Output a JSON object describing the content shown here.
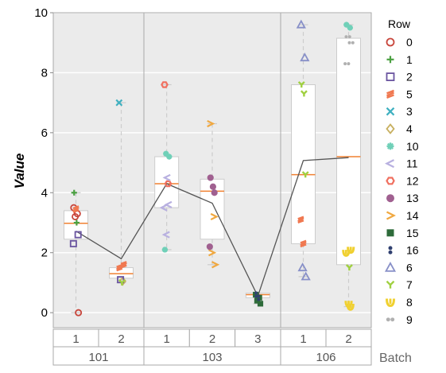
{
  "chart_data": {
    "type": "box",
    "xlabel": "Batch",
    "ylabel": "Value",
    "ylim": [
      -0.5,
      10
    ],
    "yticks": [
      0,
      2,
      4,
      6,
      8,
      10
    ],
    "grid": true,
    "legend_position": "right",
    "legend_title": "Row",
    "groups": [
      {
        "batch": "101",
        "boxes": [
          {
            "label": "1",
            "min": 0.0,
            "q1": 2.45,
            "median": 2.98,
            "q3": 3.4,
            "max": 4.0,
            "mean": 2.72,
            "points": [
              {
                "row": "0",
                "values": [
                  3.5,
                  3.3,
                  3.2,
                  0.0
                ]
              },
              {
                "row": "1",
                "values": [
                  4.0,
                  3.0
                ]
              },
              {
                "row": "2",
                "values": [
                  2.6,
                  2.3
                ]
              },
              {
                "row": "5",
                "values": [
                  3.45
                ]
              }
            ]
          },
          {
            "label": "2",
            "min": 1.0,
            "q1": 1.15,
            "median": 1.3,
            "q3": 1.5,
            "max": 7.0,
            "mean": 1.8,
            "points": [
              {
                "row": "3",
                "values": [
                  7.0
                ]
              },
              {
                "row": "4",
                "values": [
                  1.05
                ]
              },
              {
                "row": "2",
                "values": [
                  1.1
                ]
              },
              {
                "row": "5",
                "values": [
                  1.6,
                  1.5
                ]
              },
              {
                "row": "7",
                "values": [
                  1.0
                ]
              }
            ]
          }
        ]
      },
      {
        "batch": "103",
        "boxes": [
          {
            "label": "1",
            "min": 2.1,
            "q1": 3.5,
            "median": 4.3,
            "q3": 5.2,
            "max": 7.6,
            "mean": 4.3,
            "points": [
              {
                "row": "12",
                "values": [
                  7.6,
                  4.3
                ]
              },
              {
                "row": "10",
                "values": [
                  5.3,
                  5.2,
                  2.1
                ]
              },
              {
                "row": "11",
                "values": [
                  4.5,
                  3.6,
                  3.5,
                  2.6
                ]
              }
            ]
          },
          {
            "label": "2",
            "min": 1.6,
            "q1": 2.45,
            "median": 4.05,
            "q3": 4.45,
            "max": 6.3,
            "mean": 3.65,
            "points": [
              {
                "row": "14",
                "values": [
                  6.3,
                  3.2,
                  2.0,
                  1.6
                ]
              },
              {
                "row": "13",
                "values": [
                  4.5,
                  4.2,
                  4.0,
                  2.2
                ]
              }
            ]
          },
          {
            "label": "3",
            "min": 0.3,
            "q1": 0.5,
            "median": 0.6,
            "q3": 0.65,
            "max": 0.65,
            "mean": 0.55,
            "points": [
              {
                "row": "15",
                "values": [
                  0.6,
                  0.5,
                  0.4,
                  0.3
                ]
              },
              {
                "row": "16",
                "values": [
                  0.6,
                  0.5
                ]
              }
            ]
          }
        ]
      },
      {
        "batch": "106",
        "boxes": [
          {
            "label": "1",
            "min": 1.2,
            "q1": 2.3,
            "median": 4.6,
            "q3": 7.6,
            "max": 9.6,
            "mean": 5.07,
            "points": [
              {
                "row": "6",
                "values": [
                  9.6,
                  8.5,
                  1.5,
                  1.2
                ]
              },
              {
                "row": "7",
                "values": [
                  7.6,
                  7.3,
                  4.6
                ]
              },
              {
                "row": "5",
                "values": [
                  3.1,
                  2.3
                ]
              }
            ]
          },
          {
            "label": "2",
            "min": 0.2,
            "q1": 1.6,
            "median": 5.2,
            "q3": 9.15,
            "max": 9.6,
            "mean": 5.17,
            "points": [
              {
                "row": "10",
                "values": [
                  9.6,
                  9.5
                ]
              },
              {
                "row": "9",
                "values": [
                  9.2,
                  9.0,
                  8.3
                ]
              },
              {
                "row": "7",
                "values": [
                  1.5
                ]
              },
              {
                "row": "8",
                "values": [
                  2.1,
                  2.0,
                  0.3,
                  0.2
                ]
              }
            ]
          }
        ]
      }
    ],
    "legend": [
      {
        "label": "0",
        "color": "#c8463c",
        "shape": "circle-open"
      },
      {
        "label": "1",
        "color": "#4aa041",
        "shape": "plus"
      },
      {
        "label": "2",
        "color": "#6a55a0",
        "shape": "square-open"
      },
      {
        "label": "5",
        "color": "#f07850",
        "shape": "squiggle"
      },
      {
        "label": "3",
        "color": "#3fb0c0",
        "shape": "x"
      },
      {
        "label": "4",
        "color": "#c8b060",
        "shape": "diamond-open"
      },
      {
        "label": "10",
        "color": "#70d0b8",
        "shape": "asterisk"
      },
      {
        "label": "11",
        "color": "#b8b0e0",
        "shape": "lt"
      },
      {
        "label": "12",
        "color": "#f07060",
        "shape": "hexagon-open"
      },
      {
        "label": "13",
        "color": "#a06090",
        "shape": "circle-filled"
      },
      {
        "label": "14",
        "color": "#f0a840",
        "shape": "gt"
      },
      {
        "label": "15",
        "color": "#2e6b3a",
        "shape": "square-filled"
      },
      {
        "label": "16",
        "color": "#304070",
        "shape": "dumbbell"
      },
      {
        "label": "6",
        "color": "#8890c8",
        "shape": "triangle-open"
      },
      {
        "label": "7",
        "color": "#a0d040",
        "shape": "y"
      },
      {
        "label": "8",
        "color": "#f0d030",
        "shape": "blob"
      },
      {
        "label": "9",
        "color": "#b0b0b0",
        "shape": "double-dot"
      }
    ]
  },
  "colors": {
    "panel_bg": "#ebebeb",
    "gridline": "#ffffff",
    "box_fill": "#ffffff",
    "box_stroke": "#cccccc",
    "median": "#f08030",
    "mean_line": "#555555",
    "strip_stroke": "#aaaaaa"
  }
}
